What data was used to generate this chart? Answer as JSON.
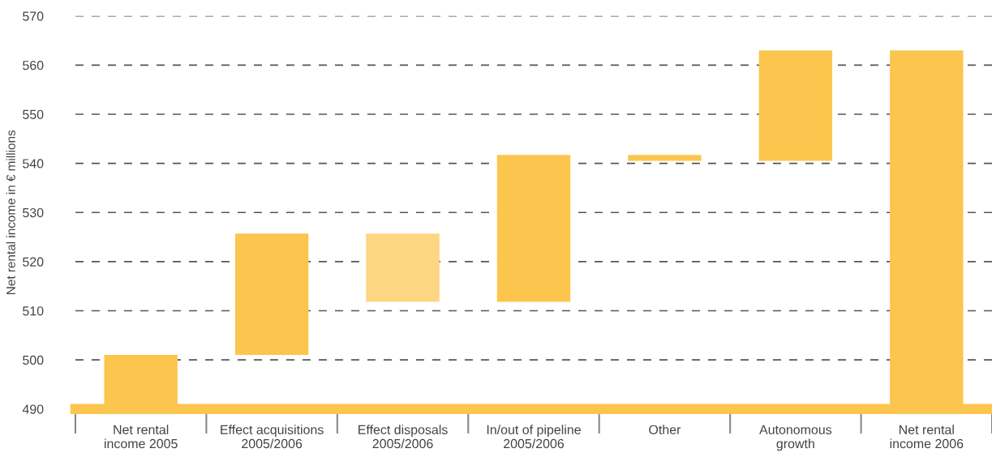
{
  "chart_data": {
    "type": "bar",
    "ylabel": "Net rental income in € millions",
    "categories": [
      "Net rental\nincome 2005",
      "Effect acquisitions\n2005/2006",
      "Effect disposals\n2005/2006",
      "In/out of pipeline\n2005/2006",
      "Other",
      "Autonomous\ngrowth",
      "Net rental\nincome 2006"
    ],
    "base": [
      490,
      501,
      525.7,
      511.8,
      540.5,
      540.5,
      490
    ],
    "values": [
      11,
      24.7,
      -13.9,
      29.9,
      1.2,
      22.5,
      73
    ],
    "colors": [
      "#fcc54d",
      "#fcc54d",
      "#fdd683",
      "#fcc54d",
      "#fcc54d",
      "#fcc54d",
      "#fcc54d"
    ],
    "ylim": [
      490,
      570
    ],
    "yticks": [
      490,
      500,
      510,
      520,
      530,
      540,
      550,
      560,
      570
    ],
    "grid": "y"
  }
}
